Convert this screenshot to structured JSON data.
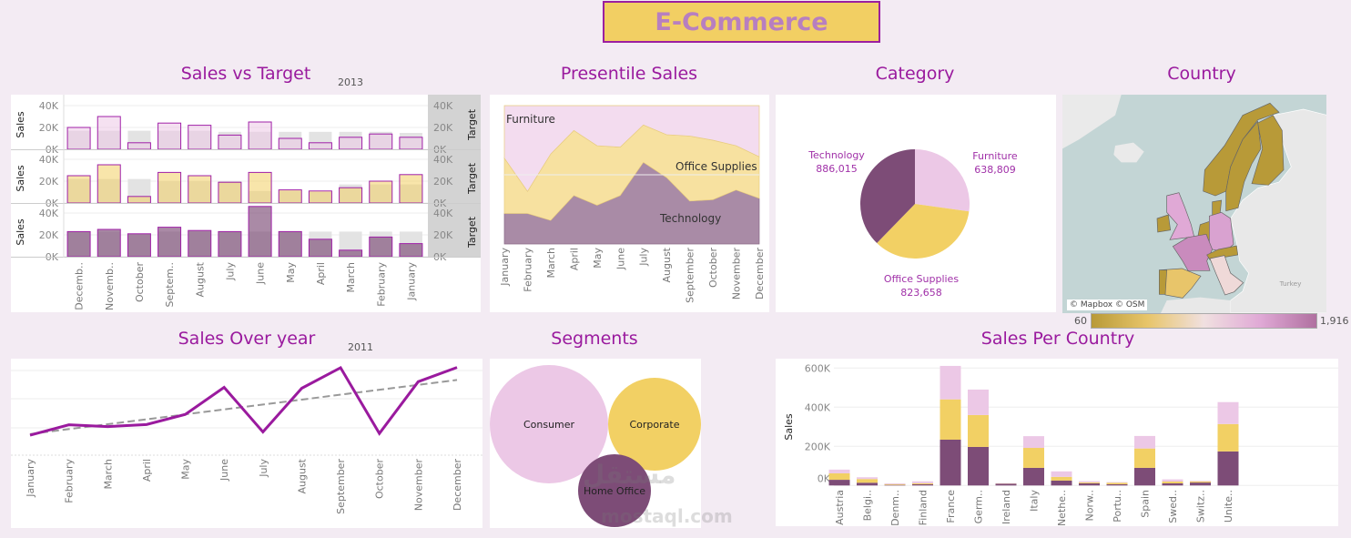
{
  "header": {
    "title": "E-Commerce"
  },
  "colors": {
    "accent": "#9a1a9e",
    "furniture": "#ecc8e6",
    "office_supplies": "#f2d064",
    "technology": "#7d4c77",
    "target": "#e3e3e3",
    "background": "#f3ebf3"
  },
  "sections": {
    "sales_vs_target": {
      "title": "Sales vs Target",
      "year": "2013"
    },
    "presentile": {
      "title": "Presentile Sales"
    },
    "category": {
      "title": "Category"
    },
    "country": {
      "title": "Country"
    },
    "sales_over_year": {
      "title": "Sales Over year",
      "year": "2011"
    },
    "segments": {
      "title": "Segments"
    },
    "sales_per_country": {
      "title": "Sales Per Country"
    }
  },
  "map": {
    "attribution": "© Mapbox © OSM",
    "place_label": "Turkey",
    "legend_min": "60",
    "legend_max": "1,916",
    "gradient": [
      "#b89a38",
      "#e8c56a",
      "#f0e0e0",
      "#e0a9d6",
      "#b070a0"
    ]
  },
  "watermark": {
    "text": "مستقل",
    "url_text": "mostaql.com"
  },
  "chart_data": [
    {
      "type": "bar",
      "title": "Sales vs Target",
      "subtitle": "2013",
      "ylabel": "Sales",
      "y2label": "Target",
      "yticks": [
        "40K",
        "20K",
        "0K"
      ],
      "ylim": [
        0,
        45000
      ],
      "categories": [
        "Decemb..",
        "Novemb..",
        "October",
        "Septem..",
        "August",
        "July",
        "June",
        "May",
        "April",
        "March",
        "February",
        "January"
      ],
      "rows": [
        {
          "color": "#ecc8e6",
          "sales": [
            20000,
            30000,
            6000,
            24000,
            22000,
            13000,
            25000,
            10000,
            6000,
            11000,
            14000,
            11000
          ],
          "target": [
            17000,
            17000,
            17000,
            17000,
            17000,
            16000,
            16000,
            16000,
            16000,
            16000,
            16000,
            15000
          ]
        },
        {
          "color": "#f2d064",
          "sales": [
            25000,
            35000,
            6000,
            28000,
            25000,
            19000,
            28000,
            12000,
            11000,
            14000,
            20000,
            26000
          ],
          "target": [
            22000,
            22000,
            22000,
            20000,
            20000,
            20000,
            11000,
            11000,
            10000,
            17000,
            17000,
            17000
          ]
        },
        {
          "color": "#7d4c77",
          "sales": [
            23000,
            25000,
            21000,
            27000,
            24000,
            23000,
            46000,
            23000,
            16000,
            6000,
            18000,
            12000
          ],
          "target": [
            23000,
            23000,
            21000,
            23000,
            23000,
            23000,
            23000,
            23000,
            23000,
            23000,
            23000,
            23000
          ]
        }
      ]
    },
    {
      "type": "area",
      "title": "Presentile Sales",
      "stacked": "percent",
      "categories": [
        "January",
        "February",
        "March",
        "April",
        "May",
        "June",
        "July",
        "August",
        "September",
        "October",
        "November",
        "December"
      ],
      "series": [
        {
          "name": "Technology",
          "color": "#a98ba6",
          "values": [
            22,
            22,
            17,
            35,
            28,
            35,
            59,
            48,
            31,
            32,
            39,
            33
          ]
        },
        {
          "name": "Office Supplies",
          "color": "#f7e1a0",
          "values": [
            40,
            16,
            48,
            47,
            43,
            35,
            27,
            31,
            47,
            43,
            32,
            30
          ]
        },
        {
          "name": "Furniture",
          "color": "#f3dcef",
          "values": [
            38,
            62,
            35,
            18,
            29,
            30,
            14,
            21,
            22,
            25,
            29,
            37
          ]
        }
      ]
    },
    {
      "type": "pie",
      "title": "Category",
      "slices": [
        {
          "name": "Furniture",
          "value": 638809,
          "label": "638,809",
          "color": "#ecc8e6"
        },
        {
          "name": "Office Supplies",
          "value": 823658,
          "label": "823,658",
          "color": "#f2d064"
        },
        {
          "name": "Technology",
          "value": 886015,
          "label": "886,015",
          "color": "#7d4c77"
        }
      ]
    },
    {
      "type": "line",
      "title": "Sales Over year",
      "subtitle": "2011",
      "x": [
        "January",
        "February",
        "March",
        "April",
        "May",
        "June",
        "July",
        "August",
        "September",
        "October",
        "November",
        "December"
      ],
      "values": [
        67,
        102,
        96,
        103,
        137,
        228,
        78,
        225,
        294,
        73,
        247,
        295
      ],
      "trend": [
        71,
        253
      ],
      "ylim": [
        0,
        300
      ],
      "y_axis_shown": false,
      "grid": true,
      "color": "#9a1a9e"
    },
    {
      "type": "bubble",
      "title": "Segments",
      "series": [
        {
          "name": "Consumer",
          "share": 0.5,
          "color": "#ecc8e6"
        },
        {
          "name": "Corporate",
          "share": 0.31,
          "color": "#f2d064"
        },
        {
          "name": "Home Office",
          "share": 0.19,
          "color": "#7d4c77"
        }
      ]
    },
    {
      "type": "bar",
      "stacked": true,
      "title": "Sales Per Country",
      "ylabel": "Sales",
      "yticks": [
        "600K",
        "400K",
        "200K",
        "0K"
      ],
      "ylim": [
        0,
        600000
      ],
      "categories": [
        "Austria",
        "Belgi..",
        "Denm..",
        "Finland",
        "France",
        "Germ..",
        "Ireland",
        "Italy",
        "Nethe..",
        "Norw..",
        "Portu..",
        "Spain",
        "Swed..",
        "Switz..",
        "Unite.."
      ],
      "series": [
        {
          "color": "#7d4c77",
          "values": [
            29000,
            14000,
            3000,
            6000,
            234000,
            197000,
            9000,
            90000,
            25000,
            11000,
            6000,
            90000,
            11000,
            15000,
            174000
          ]
        },
        {
          "color": "#f2d064",
          "values": [
            33000,
            19000,
            4000,
            5000,
            206000,
            163000,
            1000,
            102000,
            19000,
            5000,
            8000,
            99000,
            9000,
            6000,
            140000
          ]
        },
        {
          "color": "#ecc8e6",
          "values": [
            19000,
            9000,
            4000,
            10000,
            171000,
            130000,
            2000,
            60000,
            28000,
            6000,
            3000,
            64000,
            11000,
            3000,
            112000
          ]
        }
      ]
    }
  ]
}
